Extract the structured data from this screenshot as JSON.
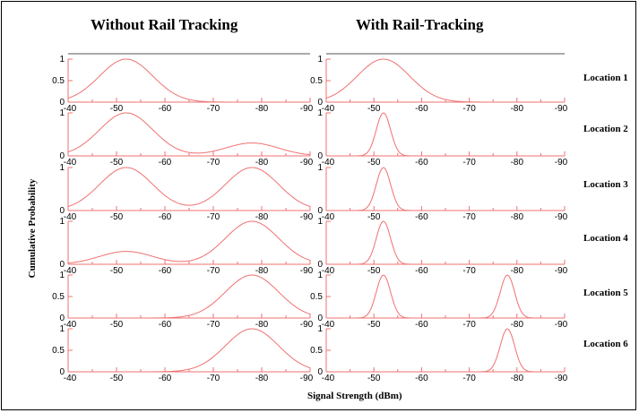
{
  "headings": {
    "left": "Without Rail Tracking",
    "right": "With Rail-Tracking",
    "ylabel": "Cumulative Probability",
    "xlabel": "Signal Strength (dBm)"
  },
  "locations": [
    "Location 1",
    "Location 2",
    "Location 3",
    "Location 4",
    "Location 5",
    "Location 6"
  ],
  "colors": {
    "curve": "#f07070",
    "axis": "#f07070",
    "text": "#000000"
  },
  "chart_data": {
    "type": "line",
    "x_ticks": [
      -40,
      -50,
      -60,
      -70,
      -80,
      -90
    ],
    "xlim": [
      -40,
      -90
    ],
    "panels": [
      {
        "column": "Without Rail Tracking",
        "row": "Location 1",
        "yticks": [
          "1",
          "0.5",
          "0"
        ],
        "ylim": [
          0,
          1
        ],
        "curve": {
          "peaks": [
            {
              "mu": -52,
              "sigma": 5.5,
              "amp": 1.0
            }
          ]
        }
      },
      {
        "column": "Without Rail Tracking",
        "row": "Location 2",
        "yticks": [
          "1",
          "0"
        ],
        "ylim": [
          0,
          1
        ],
        "curve": {
          "peaks": [
            {
              "mu": -52,
              "sigma": 5.5,
              "amp": 1.0
            },
            {
              "mu": -78,
              "sigma": 5.5,
              "amp": 0.3
            }
          ]
        }
      },
      {
        "column": "Without Rail Tracking",
        "row": "Location 3",
        "yticks": [
          "1",
          "0"
        ],
        "ylim": [
          0,
          1
        ],
        "curve": {
          "peaks": [
            {
              "mu": -52,
              "sigma": 5.5,
              "amp": 1.0
            },
            {
              "mu": -78,
              "sigma": 5.5,
              "amp": 1.0
            }
          ]
        }
      },
      {
        "column": "Without Rail Tracking",
        "row": "Location 4",
        "yticks": [
          "1",
          "0"
        ],
        "ylim": [
          0,
          1
        ],
        "curve": {
          "peaks": [
            {
              "mu": -52,
              "sigma": 5.5,
              "amp": 0.3
            },
            {
              "mu": -78,
              "sigma": 5.5,
              "amp": 1.0
            }
          ]
        }
      },
      {
        "column": "Without Rail Tracking",
        "row": "Location 5",
        "yticks": [
          "1",
          "0.5",
          "0"
        ],
        "ylim": [
          0,
          1
        ],
        "curve": {
          "peaks": [
            {
              "mu": -78,
              "sigma": 5.5,
              "amp": 1.0
            }
          ]
        }
      },
      {
        "column": "Without Rail Tracking",
        "row": "Location 6",
        "yticks": [
          "1",
          "0.5",
          "0"
        ],
        "ylim": [
          0,
          1
        ],
        "curve": {
          "peaks": [
            {
              "mu": -78,
              "sigma": 5.5,
              "amp": 1.0
            }
          ]
        }
      },
      {
        "column": "With Rail-Tracking",
        "row": "Location 1",
        "yticks": [
          "1",
          "0.5",
          "0"
        ],
        "ylim": [
          0,
          1
        ],
        "curve": {
          "peaks": [
            {
              "mu": -52,
              "sigma": 5.5,
              "amp": 1.0
            }
          ]
        }
      },
      {
        "column": "With Rail-Tracking",
        "row": "Location 2",
        "yticks": [
          "1",
          "0"
        ],
        "ylim": [
          0,
          1
        ],
        "curve": {
          "peaks": [
            {
              "mu": -52,
              "sigma": 1.5,
              "amp": 1.0
            }
          ]
        }
      },
      {
        "column": "With Rail-Tracking",
        "row": "Location 3",
        "yticks": [
          "1",
          "0"
        ],
        "ylim": [
          0,
          1
        ],
        "curve": {
          "peaks": [
            {
              "mu": -52,
              "sigma": 1.5,
              "amp": 1.0
            }
          ]
        }
      },
      {
        "column": "With Rail-Tracking",
        "row": "Location 4",
        "yticks": [
          "1",
          "0"
        ],
        "ylim": [
          0,
          1
        ],
        "curve": {
          "peaks": [
            {
              "mu": -52,
              "sigma": 1.5,
              "amp": 1.0
            }
          ]
        }
      },
      {
        "column": "With Rail-Tracking",
        "row": "Location 5",
        "yticks": [
          "1",
          "0.5",
          "0"
        ],
        "ylim": [
          0,
          1
        ],
        "curve": {
          "peaks": [
            {
              "mu": -52,
              "sigma": 1.5,
              "amp": 1.0
            },
            {
              "mu": -78,
              "sigma": 1.5,
              "amp": 1.0
            }
          ]
        }
      },
      {
        "column": "With Rail-Tracking",
        "row": "Location 6",
        "yticks": [
          "1",
          "0.5",
          "0"
        ],
        "ylim": [
          0,
          1
        ],
        "curve": {
          "peaks": [
            {
              "mu": -78,
              "sigma": 1.5,
              "amp": 1.0
            }
          ]
        }
      }
    ]
  }
}
